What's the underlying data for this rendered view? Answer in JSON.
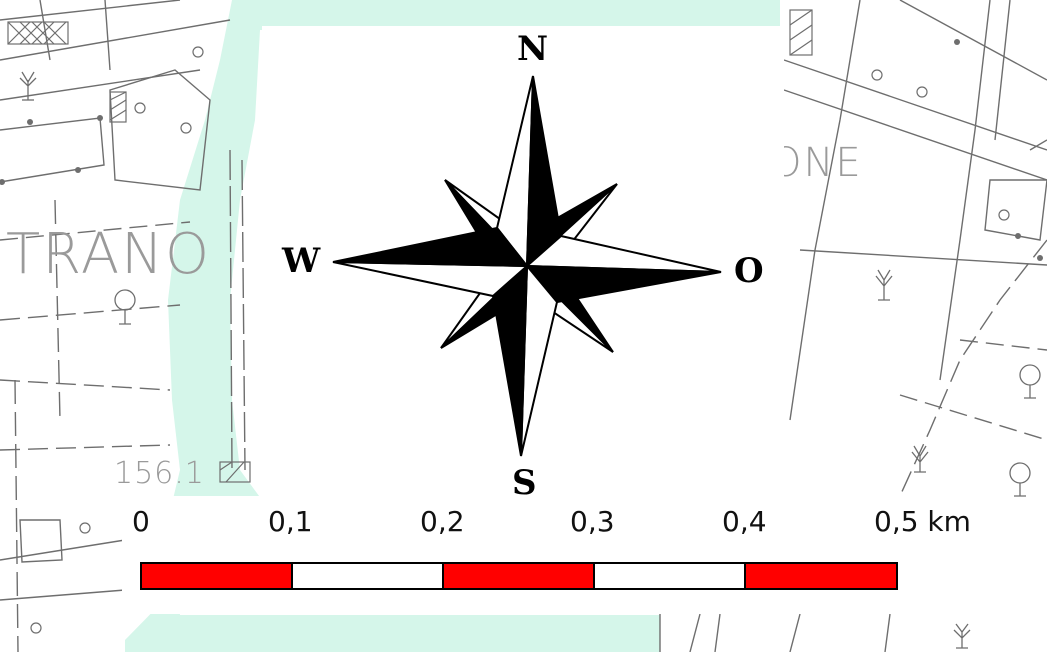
{
  "map": {
    "place_labels": [
      "TRANO",
      "ONE"
    ],
    "elevation_label": "156.1",
    "colors": {
      "river": "#d5f6ea",
      "lines": "#6e6e6e",
      "background": "#ffffff"
    }
  },
  "compass": {
    "north": "N",
    "south": "S",
    "west": "W",
    "east": "O",
    "icon": "compass-rose-icon"
  },
  "scale_bar": {
    "labels": [
      "0",
      "0,1",
      "0,2",
      "0,3",
      "0,4",
      "0,5 km"
    ],
    "unit": "km",
    "segment_colors": [
      "#ff0000",
      "#ffffff",
      "#ff0000",
      "#ffffff",
      "#ff0000"
    ]
  }
}
